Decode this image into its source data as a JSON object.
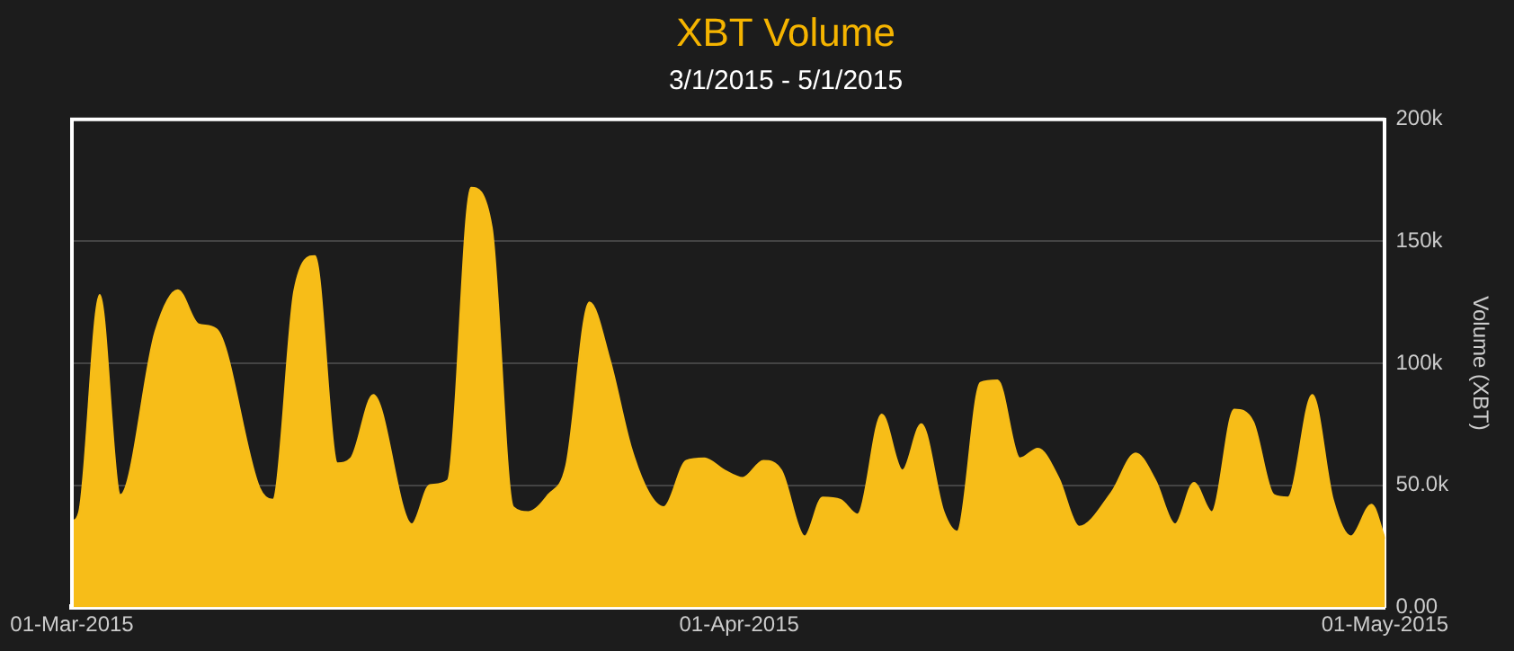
{
  "chart_data": {
    "type": "area",
    "title": "XBT Volume",
    "subtitle": "3/1/2015 - 5/1/2015",
    "y2label": "Volume (XBT)",
    "x": [
      "2015-03-01T00:00",
      "2015-03-01T08:00",
      "2015-03-02T07:00",
      "2015-03-03T06:00",
      "2015-03-04T21:00",
      "2015-03-05T22:00",
      "2015-03-06T21:00",
      "2015-03-07T17:00",
      "2015-03-09T17:00",
      "2015-03-10T08:00",
      "2015-03-11T08:00",
      "2015-03-12T07:00",
      "2015-03-13T08:00",
      "2015-03-13T23:00",
      "2015-03-15T00:00",
      "2015-03-16T19:00",
      "2015-03-17T15:00",
      "2015-03-18T11:00",
      "2015-03-19T13:00",
      "2015-03-20T12:00",
      "2015-03-21T12:00",
      "2015-03-22T05:00",
      "2015-03-23T03:00",
      "2015-03-23T23:00",
      "2015-03-25T01:00",
      "2015-03-26T00:00",
      "2015-03-26T23:00",
      "2015-03-27T19:00",
      "2015-03-28T12:00",
      "2015-03-29T13:00",
      "2015-03-30T09:00",
      "2015-03-31T08:00",
      "2015-04-01T04:00",
      "2015-04-02T03:00",
      "2015-04-02T23:00",
      "2015-04-04T01:00",
      "2015-04-04T21:00",
      "2015-04-05T17:00",
      "2015-04-06T12:00",
      "2015-04-07T15:00",
      "2015-04-08T14:00",
      "2015-04-09T11:00",
      "2015-04-10T12:00",
      "2015-04-11T03:00",
      "2015-04-12T05:00",
      "2015-04-13T00:00",
      "2015-04-14T01:00",
      "2015-04-14T21:00",
      "2015-04-15T20:00",
      "2015-04-16T19:00",
      "2015-04-18T07:00",
      "2015-04-19T10:00",
      "2015-04-20T08:00",
      "2015-04-21T06:00",
      "2015-04-22T03:00",
      "2015-04-22T23:00",
      "2015-04-24T00:00",
      "2015-04-24T21:00",
      "2015-04-25T20:00",
      "2015-04-26T12:00",
      "2015-04-27T15:00",
      "2015-04-28T14:00",
      "2015-04-29T10:00",
      "2015-04-30T09:00",
      "2015-05-01T00:00"
    ],
    "series": [
      {
        "color": "#f7bd18",
        "axis": "y2",
        "values": [
          35000,
          39000,
          128000,
          46000,
          113000,
          130000,
          116000,
          114000,
          49000,
          44000,
          130000,
          144000,
          59000,
          61000,
          87000,
          34000,
          50000,
          52000,
          172000,
          156000,
          41000,
          39000,
          46000,
          58000,
          125000,
          101000,
          66000,
          47000,
          41000,
          60000,
          61000,
          56000,
          53000,
          60000,
          56000,
          29000,
          45000,
          44000,
          38000,
          79000,
          56000,
          75000,
          39000,
          31000,
          92000,
          93000,
          61000,
          65000,
          53000,
          33000,
          47000,
          63000,
          52000,
          34000,
          51000,
          39000,
          81000,
          76000,
          46000,
          45000,
          87000,
          44000,
          29000,
          42000,
          28000
        ]
      }
    ],
    "xlim": [
      "2015-03-01",
      "2015-05-01"
    ],
    "xticks": [
      {
        "value": "2015-03-01",
        "label": "01-Mar-2015"
      },
      {
        "value": "2015-04-01",
        "label": "01-Apr-2015"
      },
      {
        "value": "2015-05-01",
        "label": "01-May-2015"
      }
    ],
    "y2lim": [
      0,
      200000
    ],
    "y2ticks": [
      {
        "value": 0,
        "label": "0.00"
      },
      {
        "value": 50000,
        "label": "50.0k"
      },
      {
        "value": 100000,
        "label": "100k"
      },
      {
        "value": 150000,
        "label": "150k"
      },
      {
        "value": 200000,
        "label": "200k"
      }
    ],
    "grid": "y"
  }
}
